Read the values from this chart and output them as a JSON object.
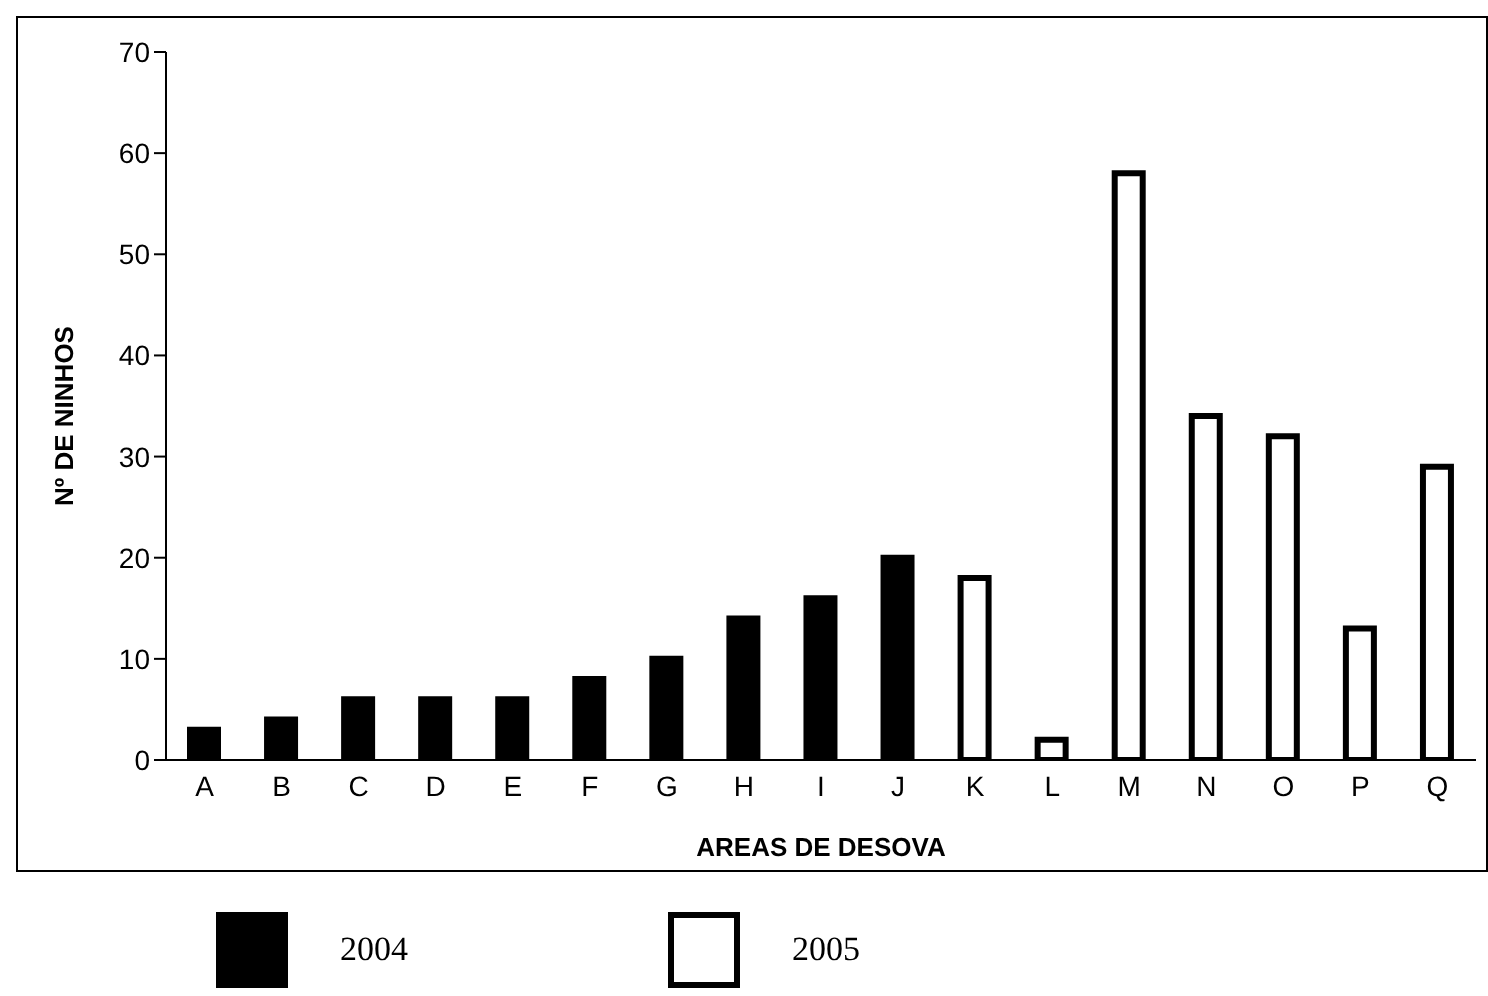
{
  "chart_data": {
    "type": "bar",
    "xlabel": "AREAS DE DESOVA",
    "ylabel": "Nº DE NINHOS",
    "categories": [
      "A",
      "B",
      "C",
      "D",
      "E",
      "F",
      "G",
      "H",
      "I",
      "J",
      "K",
      "L",
      "M",
      "N",
      "O",
      "P",
      "Q"
    ],
    "series": [
      {
        "name": "2004",
        "color": "#000000",
        "values": [
          3,
          4,
          6,
          6,
          6,
          8,
          10,
          14,
          16,
          20,
          null,
          null,
          null,
          null,
          null,
          null,
          null
        ]
      },
      {
        "name": "2005",
        "color": "#ffffff",
        "values": [
          null,
          null,
          null,
          null,
          null,
          null,
          null,
          null,
          null,
          null,
          18,
          2,
          58,
          34,
          32,
          13,
          29
        ]
      }
    ],
    "stacked": true,
    "ylim": [
      0,
      70
    ],
    "yticks": [
      0,
      10,
      20,
      30,
      40,
      50,
      60,
      70
    ],
    "legend": "bottom"
  }
}
